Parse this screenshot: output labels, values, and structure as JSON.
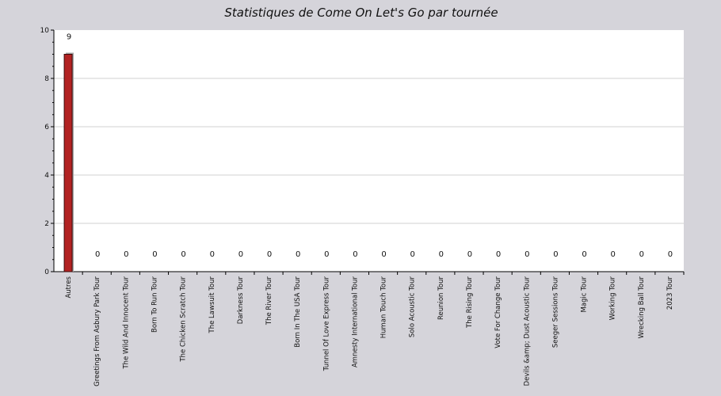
{
  "chart_data": {
    "type": "bar",
    "title": "Statistiques de Come On Let's Go par tournée",
    "xlabel": "",
    "ylabel": "",
    "ylim": [
      0,
      10
    ],
    "yticks": [
      "0",
      "2",
      "4",
      "6",
      "8",
      "10"
    ],
    "grid": true,
    "categories": [
      "Autres",
      "Greetings From Asbury Park Tour",
      "The Wild And Innocent Tour",
      "Born To Run Tour",
      "The Chicken Scratch Tour",
      "The Lawsuit Tour",
      "Darkness Tour",
      "The River Tour",
      "Born In The USA Tour",
      "Tunnel Of Love Express Tour",
      "Amnesty International Tour",
      "Human Touch Tour",
      "Solo Acoustic Tour",
      "Reunion Tour",
      "The Rising Tour",
      "Vote For Change Tour",
      "Devils &amp; Dust Acoustic Tour",
      "Seeger Sessions Tour",
      "Magic Tour",
      "Working Tour",
      "Wrecking Ball Tour",
      "2023 Tour"
    ],
    "values": [
      9,
      0,
      0,
      0,
      0,
      0,
      0,
      0,
      0,
      0,
      0,
      0,
      0,
      0,
      0,
      0,
      0,
      0,
      0,
      0,
      0,
      0
    ],
    "data_labels": [
      "9",
      "0",
      "0",
      "0",
      "0",
      "0",
      "0",
      "0",
      "0",
      "0",
      "0",
      "0",
      "0",
      "0",
      "0",
      "0",
      "0",
      "0",
      "0",
      "0",
      "0",
      "0"
    ],
    "colors": {
      "background": "#d5d4da",
      "plot_background": "#ffffff",
      "bar": "#b22222",
      "bar_shadow": "#a9a9a9",
      "grid": "#d0d0d0"
    }
  }
}
